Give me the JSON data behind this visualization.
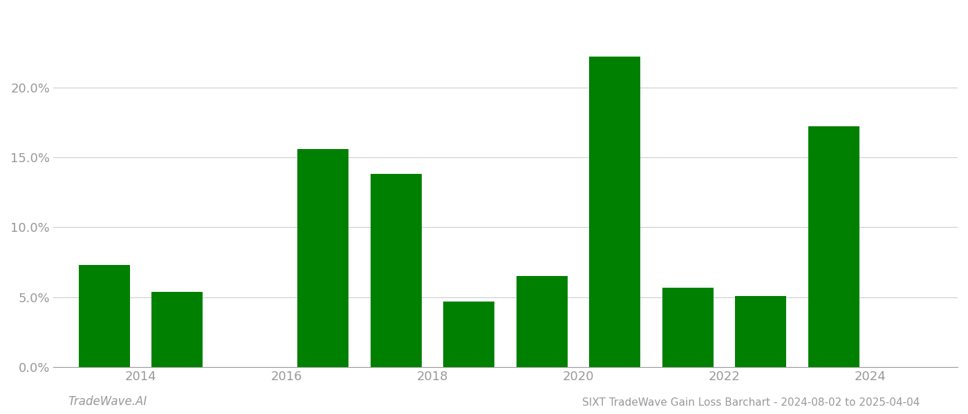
{
  "bar_positions": [
    2013.5,
    2014.5,
    2015.5,
    2016.5,
    2017.5,
    2018.5,
    2019.5,
    2020.5,
    2021.5,
    2022.5,
    2023.5
  ],
  "values": [
    0.073,
    0.054,
    0.0,
    0.156,
    0.138,
    0.047,
    0.065,
    0.222,
    0.057,
    0.051,
    0.172
  ],
  "bar_color": "#008000",
  "background_color": "#ffffff",
  "ylim": [
    0,
    0.255
  ],
  "yticks": [
    0.0,
    0.05,
    0.1,
    0.15,
    0.2
  ],
  "ytick_labels": [
    "0.0%",
    "5.0%",
    "10.0%",
    "15.0%",
    "20.0%"
  ],
  "xticks": [
    2014,
    2016,
    2018,
    2020,
    2022,
    2024
  ],
  "xlim": [
    2012.8,
    2025.2
  ],
  "footer_left": "TradeWave.AI",
  "footer_right": "SIXT TradeWave Gain Loss Barchart - 2024-08-02 to 2025-04-04",
  "bar_width": 0.7,
  "tick_color": "#999999",
  "grid_color": "#cccccc",
  "spine_color": "#999999"
}
